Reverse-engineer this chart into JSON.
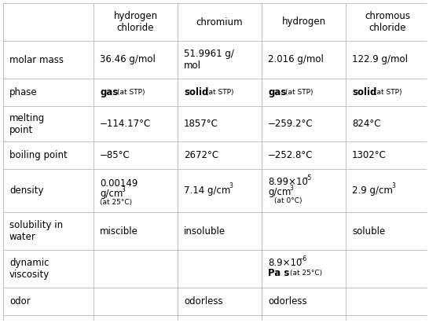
{
  "col_headers": [
    "hydrogen\nchloride",
    "chromium",
    "hydrogen",
    "chromous\nchloride"
  ],
  "row_headers": [
    "molar mass",
    "phase",
    "melting\npoint",
    "boiling point",
    "density",
    "solubility in\nwater",
    "dynamic\nviscosity",
    "odor"
  ],
  "bg_color": "#ffffff",
  "line_color": "#c0c0c0",
  "text_color": "#000000",
  "font_size": 8.5,
  "small_font_size": 6.5,
  "figsize": [
    5.46,
    4.11
  ],
  "dpi": 100
}
